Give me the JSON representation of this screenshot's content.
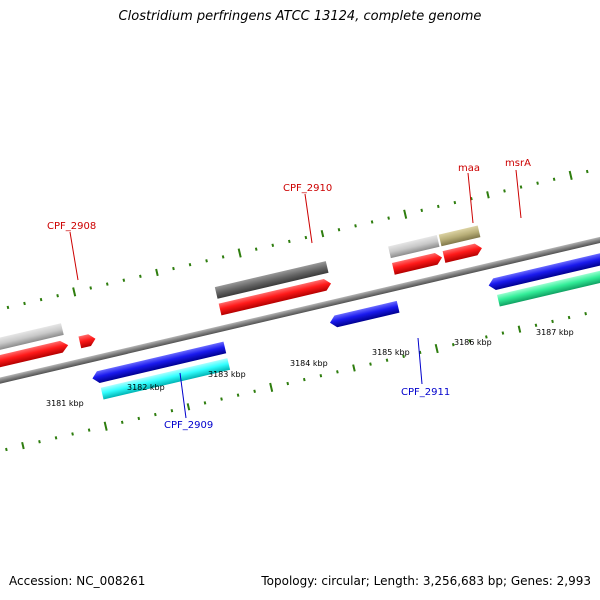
{
  "header": {
    "title": "Clostridium perfringens ATCC 13124, complete genome"
  },
  "footer": {
    "accession": "Accession: NC_008261",
    "summary": "Topology: circular; Length: 3,256,683 bp; Genes: 2,993"
  },
  "scale": {
    "tick_labels": [
      "3181 kbp",
      "3182 kbp",
      "3183 kbp",
      "3184 kbp",
      "3185 kbp",
      "3186 kbp",
      "3187 kbp"
    ]
  },
  "colors": {
    "backbone": "#808080",
    "tick": "#2e7d0e",
    "forward_label": "#cc0000",
    "reverse_label": "#0000cc",
    "red_feature": "#ff1a1a",
    "blue_feature": "#1a1aee",
    "cyan_feature": "#33ffff",
    "green_feature": "#33ee99",
    "light_gray_feature": "#c8c8c8",
    "dark_gray_feature": "#666666",
    "khaki_feature": "#b8ae78"
  },
  "genes": [
    {
      "label": "CPF_2908",
      "strand": "forward"
    },
    {
      "label": "CPF_2910",
      "strand": "forward"
    },
    {
      "label": "maa",
      "strand": "forward"
    },
    {
      "label": "msrA",
      "strand": "forward"
    },
    {
      "label": "CPF_2909",
      "strand": "reverse"
    },
    {
      "label": "CPF_2911",
      "strand": "reverse"
    }
  ]
}
